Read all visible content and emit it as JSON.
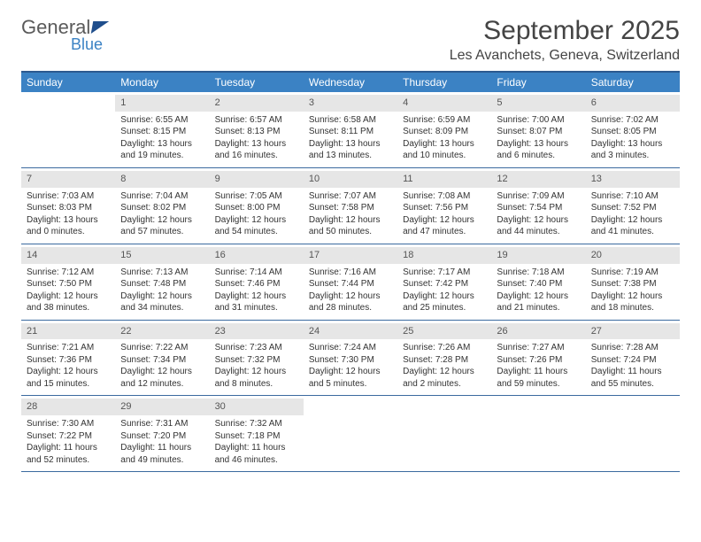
{
  "logo": {
    "text1": "General",
    "text2": "Blue"
  },
  "title": "September 2025",
  "location": "Les Avanchets, Geneva, Switzerland",
  "colors": {
    "header_bg": "#3b82c4",
    "header_border": "#2c5a8f",
    "week_divider": "#3b6a9f",
    "daynum_bg": "#e6e6e6",
    "text": "#333333",
    "title_color": "#444444"
  },
  "day_headers": [
    "Sunday",
    "Monday",
    "Tuesday",
    "Wednesday",
    "Thursday",
    "Friday",
    "Saturday"
  ],
  "weeks": [
    [
      null,
      {
        "n": "1",
        "sr": "6:55 AM",
        "ss": "8:15 PM",
        "dl": "13 hours and 19 minutes."
      },
      {
        "n": "2",
        "sr": "6:57 AM",
        "ss": "8:13 PM",
        "dl": "13 hours and 16 minutes."
      },
      {
        "n": "3",
        "sr": "6:58 AM",
        "ss": "8:11 PM",
        "dl": "13 hours and 13 minutes."
      },
      {
        "n": "4",
        "sr": "6:59 AM",
        "ss": "8:09 PM",
        "dl": "13 hours and 10 minutes."
      },
      {
        "n": "5",
        "sr": "7:00 AM",
        "ss": "8:07 PM",
        "dl": "13 hours and 6 minutes."
      },
      {
        "n": "6",
        "sr": "7:02 AM",
        "ss": "8:05 PM",
        "dl": "13 hours and 3 minutes."
      }
    ],
    [
      {
        "n": "7",
        "sr": "7:03 AM",
        "ss": "8:03 PM",
        "dl": "13 hours and 0 minutes."
      },
      {
        "n": "8",
        "sr": "7:04 AM",
        "ss": "8:02 PM",
        "dl": "12 hours and 57 minutes."
      },
      {
        "n": "9",
        "sr": "7:05 AM",
        "ss": "8:00 PM",
        "dl": "12 hours and 54 minutes."
      },
      {
        "n": "10",
        "sr": "7:07 AM",
        "ss": "7:58 PM",
        "dl": "12 hours and 50 minutes."
      },
      {
        "n": "11",
        "sr": "7:08 AM",
        "ss": "7:56 PM",
        "dl": "12 hours and 47 minutes."
      },
      {
        "n": "12",
        "sr": "7:09 AM",
        "ss": "7:54 PM",
        "dl": "12 hours and 44 minutes."
      },
      {
        "n": "13",
        "sr": "7:10 AM",
        "ss": "7:52 PM",
        "dl": "12 hours and 41 minutes."
      }
    ],
    [
      {
        "n": "14",
        "sr": "7:12 AM",
        "ss": "7:50 PM",
        "dl": "12 hours and 38 minutes."
      },
      {
        "n": "15",
        "sr": "7:13 AM",
        "ss": "7:48 PM",
        "dl": "12 hours and 34 minutes."
      },
      {
        "n": "16",
        "sr": "7:14 AM",
        "ss": "7:46 PM",
        "dl": "12 hours and 31 minutes."
      },
      {
        "n": "17",
        "sr": "7:16 AM",
        "ss": "7:44 PM",
        "dl": "12 hours and 28 minutes."
      },
      {
        "n": "18",
        "sr": "7:17 AM",
        "ss": "7:42 PM",
        "dl": "12 hours and 25 minutes."
      },
      {
        "n": "19",
        "sr": "7:18 AM",
        "ss": "7:40 PM",
        "dl": "12 hours and 21 minutes."
      },
      {
        "n": "20",
        "sr": "7:19 AM",
        "ss": "7:38 PM",
        "dl": "12 hours and 18 minutes."
      }
    ],
    [
      {
        "n": "21",
        "sr": "7:21 AM",
        "ss": "7:36 PM",
        "dl": "12 hours and 15 minutes."
      },
      {
        "n": "22",
        "sr": "7:22 AM",
        "ss": "7:34 PM",
        "dl": "12 hours and 12 minutes."
      },
      {
        "n": "23",
        "sr": "7:23 AM",
        "ss": "7:32 PM",
        "dl": "12 hours and 8 minutes."
      },
      {
        "n": "24",
        "sr": "7:24 AM",
        "ss": "7:30 PM",
        "dl": "12 hours and 5 minutes."
      },
      {
        "n": "25",
        "sr": "7:26 AM",
        "ss": "7:28 PM",
        "dl": "12 hours and 2 minutes."
      },
      {
        "n": "26",
        "sr": "7:27 AM",
        "ss": "7:26 PM",
        "dl": "11 hours and 59 minutes."
      },
      {
        "n": "27",
        "sr": "7:28 AM",
        "ss": "7:24 PM",
        "dl": "11 hours and 55 minutes."
      }
    ],
    [
      {
        "n": "28",
        "sr": "7:30 AM",
        "ss": "7:22 PM",
        "dl": "11 hours and 52 minutes."
      },
      {
        "n": "29",
        "sr": "7:31 AM",
        "ss": "7:20 PM",
        "dl": "11 hours and 49 minutes."
      },
      {
        "n": "30",
        "sr": "7:32 AM",
        "ss": "7:18 PM",
        "dl": "11 hours and 46 minutes."
      },
      null,
      null,
      null,
      null
    ]
  ],
  "labels": {
    "sunrise": "Sunrise:",
    "sunset": "Sunset:",
    "daylight": "Daylight:"
  }
}
